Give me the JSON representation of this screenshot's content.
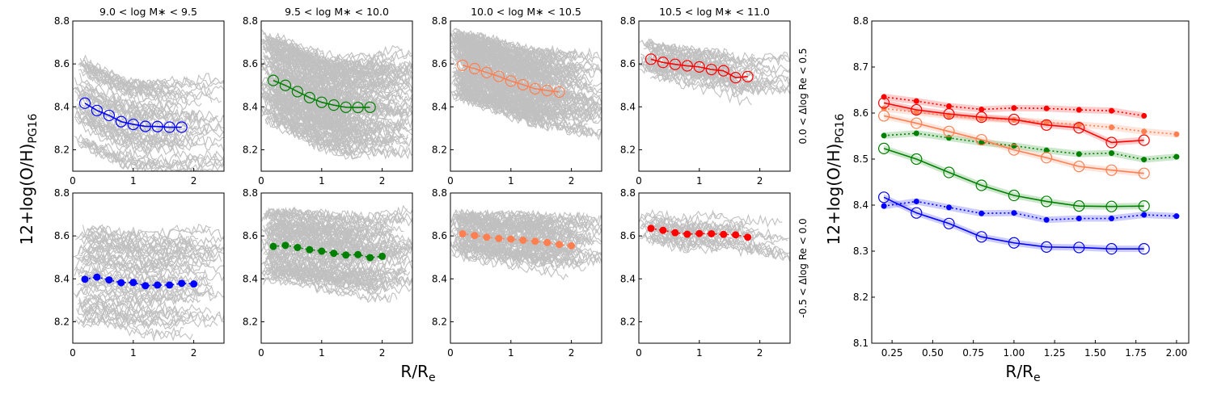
{
  "figure": {
    "ylabel": "12+log(O/H)",
    "ylabel_sub": "PG16",
    "xlabel": "R/R",
    "xlabel_sub": "e",
    "colors": {
      "bin1": "#0000ff",
      "bin2": "#008000",
      "bin3": "#ff7f50",
      "bin4": "#ff0000",
      "background": "#c0c0c0"
    }
  },
  "chart_data": [
    {
      "type": "line",
      "panel": "top-1",
      "title": "9.0 < log M∗ < 9.5",
      "row_label": "",
      "xlim": [
        0,
        2.5
      ],
      "ylim": [
        8.1,
        8.8
      ],
      "xticks": [
        "0",
        "1",
        "2"
      ],
      "yticks": [
        "8.2",
        "8.4",
        "8.6",
        "8.8"
      ],
      "marker": "open",
      "linestyle": "solid",
      "background_lines": {
        "count": 60,
        "spread": 0.2
      },
      "series": [
        {
          "name": "median",
          "color": "#0000ff",
          "x": [
            0.2,
            0.4,
            0.6,
            0.8,
            1.0,
            1.2,
            1.4,
            1.6,
            1.8
          ],
          "y": [
            8.417,
            8.383,
            8.36,
            8.331,
            8.318,
            8.309,
            8.308,
            8.305,
            8.305
          ]
        }
      ]
    },
    {
      "type": "line",
      "panel": "top-2",
      "title": "9.5 < log M∗ < 10.0",
      "row_label": "",
      "xlim": [
        0,
        2.5
      ],
      "ylim": [
        8.1,
        8.8
      ],
      "xticks": [
        "0",
        "1",
        "2"
      ],
      "yticks": [
        "8.2",
        "8.4",
        "8.6",
        "8.8"
      ],
      "marker": "open",
      "linestyle": "solid",
      "background_lines": {
        "count": 160,
        "spread": 0.2
      },
      "series": [
        {
          "name": "median",
          "color": "#008000",
          "x": [
            0.2,
            0.4,
            0.6,
            0.8,
            1.0,
            1.2,
            1.4,
            1.6,
            1.8
          ],
          "y": [
            8.523,
            8.5,
            8.471,
            8.443,
            8.421,
            8.408,
            8.398,
            8.397,
            8.398
          ]
        }
      ]
    },
    {
      "type": "line",
      "panel": "top-3",
      "title": "10.0 < log M∗ < 10.5",
      "row_label": "",
      "xlim": [
        0,
        2.5
      ],
      "ylim": [
        8.1,
        8.8
      ],
      "xticks": [
        "0",
        "1",
        "2"
      ],
      "yticks": [
        "8.2",
        "8.4",
        "8.6",
        "8.8"
      ],
      "marker": "open",
      "linestyle": "solid",
      "background_lines": {
        "count": 160,
        "spread": 0.16
      },
      "series": [
        {
          "name": "median",
          "color": "#ff7f50",
          "x": [
            0.2,
            0.4,
            0.6,
            0.8,
            1.0,
            1.2,
            1.4,
            1.6,
            1.8
          ],
          "y": [
            8.594,
            8.578,
            8.56,
            8.542,
            8.52,
            8.503,
            8.484,
            8.476,
            8.469
          ]
        }
      ]
    },
    {
      "type": "line",
      "panel": "top-4",
      "title": "10.5 < log M∗ < 11.0",
      "row_label": "0.0 < Δlog Re < 0.5",
      "xlim": [
        0,
        2.5
      ],
      "ylim": [
        8.1,
        8.8
      ],
      "xticks": [
        "0",
        "1",
        "2"
      ],
      "yticks": [
        "8.2",
        "8.4",
        "8.6",
        "8.8"
      ],
      "marker": "open",
      "linestyle": "solid",
      "background_lines": {
        "count": 40,
        "spread": 0.08
      },
      "series": [
        {
          "name": "median",
          "color": "#ff0000",
          "x": [
            0.2,
            0.4,
            0.6,
            0.8,
            1.0,
            1.2,
            1.4,
            1.6,
            1.8
          ],
          "y": [
            8.622,
            8.607,
            8.598,
            8.591,
            8.586,
            8.574,
            8.568,
            8.536,
            8.541
          ]
        }
      ]
    },
    {
      "type": "line",
      "panel": "bottom-1",
      "title": "",
      "row_label": "",
      "xlim": [
        0,
        2.5
      ],
      "ylim": [
        8.1,
        8.8
      ],
      "xticks": [
        "0",
        "1",
        "2"
      ],
      "yticks": [
        "8.2",
        "8.4",
        "8.6",
        "8.8"
      ],
      "marker": "filled",
      "linestyle": "dotted",
      "background_lines": {
        "count": 60,
        "spread": 0.24
      },
      "series": [
        {
          "name": "median",
          "color": "#0000ff",
          "x": [
            0.2,
            0.4,
            0.6,
            0.8,
            1.0,
            1.2,
            1.4,
            1.6,
            1.8,
            2.0
          ],
          "y": [
            8.398,
            8.408,
            8.395,
            8.382,
            8.383,
            8.368,
            8.371,
            8.371,
            8.379,
            8.376
          ]
        }
      ]
    },
    {
      "type": "line",
      "panel": "bottom-2",
      "title": "",
      "row_label": "",
      "xlim": [
        0,
        2.5
      ],
      "ylim": [
        8.1,
        8.8
      ],
      "xticks": [
        "0",
        "1",
        "2"
      ],
      "yticks": [
        "8.2",
        "8.4",
        "8.6",
        "8.8"
      ],
      "marker": "filled",
      "linestyle": "dotted",
      "background_lines": {
        "count": 100,
        "spread": 0.16
      },
      "series": [
        {
          "name": "median",
          "color": "#008000",
          "x": [
            0.2,
            0.4,
            0.6,
            0.8,
            1.0,
            1.2,
            1.4,
            1.6,
            1.8,
            2.0
          ],
          "y": [
            8.551,
            8.556,
            8.546,
            8.536,
            8.529,
            8.519,
            8.511,
            8.513,
            8.499,
            8.505
          ]
        }
      ]
    },
    {
      "type": "line",
      "panel": "bottom-3",
      "title": "",
      "row_label": "",
      "xlim": [
        0,
        2.5
      ],
      "ylim": [
        8.1,
        8.8
      ],
      "xticks": [
        "0",
        "1",
        "2"
      ],
      "yticks": [
        "8.2",
        "8.4",
        "8.6",
        "8.8"
      ],
      "marker": "filled",
      "linestyle": "dotted",
      "background_lines": {
        "count": 80,
        "spread": 0.1
      },
      "series": [
        {
          "name": "median",
          "color": "#ff7f50",
          "x": [
            0.2,
            0.4,
            0.6,
            0.8,
            1.0,
            1.2,
            1.4,
            1.6,
            1.8,
            2.0
          ],
          "y": [
            8.61,
            8.602,
            8.594,
            8.588,
            8.585,
            8.58,
            8.575,
            8.569,
            8.56,
            8.554
          ]
        }
      ]
    },
    {
      "type": "line",
      "panel": "bottom-4",
      "title": "",
      "row_label": "-0.5 < Δlog Re < 0.0",
      "xlim": [
        0,
        2.5
      ],
      "ylim": [
        8.1,
        8.8
      ],
      "xticks": [
        "0",
        "1",
        "2"
      ],
      "yticks": [
        "8.2",
        "8.4",
        "8.6",
        "8.8"
      ],
      "marker": "filled",
      "linestyle": "dotted",
      "background_lines": {
        "count": 25,
        "spread": 0.06
      },
      "series": [
        {
          "name": "median",
          "color": "#ff0000",
          "x": [
            0.2,
            0.4,
            0.6,
            0.8,
            1.0,
            1.2,
            1.4,
            1.6,
            1.8
          ],
          "y": [
            8.635,
            8.626,
            8.615,
            8.608,
            8.611,
            8.61,
            8.607,
            8.605,
            8.594
          ]
        }
      ]
    },
    {
      "type": "line",
      "panel": "summary",
      "title": "",
      "xlim": [
        0.125,
        2.075
      ],
      "ylim": [
        8.1,
        8.8
      ],
      "xticks": [
        "0.25",
        "0.50",
        "0.75",
        "1.00",
        "1.25",
        "1.50",
        "1.75",
        "2.00"
      ],
      "yticks": [
        "8.1",
        "8.2",
        "8.3",
        "8.4",
        "8.5",
        "8.6",
        "8.7",
        "8.8"
      ],
      "band_halfwidth": 0.007,
      "series": [
        {
          "name": "9.0-9.5 filled",
          "color": "#0000ff",
          "marker": "filled",
          "linestyle": "dotted",
          "x": [
            0.2,
            0.4,
            0.6,
            0.8,
            1.0,
            1.2,
            1.4,
            1.6,
            1.8,
            2.0
          ],
          "y": [
            8.398,
            8.408,
            8.395,
            8.382,
            8.383,
            8.368,
            8.371,
            8.371,
            8.379,
            8.376
          ]
        },
        {
          "name": "9.0-9.5 open",
          "color": "#0000ff",
          "marker": "open",
          "linestyle": "solid",
          "x": [
            0.2,
            0.4,
            0.6,
            0.8,
            1.0,
            1.2,
            1.4,
            1.6,
            1.8
          ],
          "y": [
            8.417,
            8.383,
            8.36,
            8.331,
            8.318,
            8.309,
            8.308,
            8.305,
            8.305
          ]
        },
        {
          "name": "9.5-10.0 filled",
          "color": "#008000",
          "marker": "filled",
          "linestyle": "dotted",
          "x": [
            0.2,
            0.4,
            0.6,
            0.8,
            1.0,
            1.2,
            1.4,
            1.6,
            1.8,
            2.0
          ],
          "y": [
            8.551,
            8.556,
            8.546,
            8.536,
            8.529,
            8.519,
            8.511,
            8.513,
            8.499,
            8.505
          ]
        },
        {
          "name": "9.5-10.0 open",
          "color": "#008000",
          "marker": "open",
          "linestyle": "solid",
          "x": [
            0.2,
            0.4,
            0.6,
            0.8,
            1.0,
            1.2,
            1.4,
            1.6,
            1.8
          ],
          "y": [
            8.523,
            8.5,
            8.471,
            8.443,
            8.421,
            8.408,
            8.398,
            8.397,
            8.398
          ]
        },
        {
          "name": "10.0-10.5 filled",
          "color": "#ff7f50",
          "marker": "filled",
          "linestyle": "dotted",
          "x": [
            0.2,
            0.4,
            0.6,
            0.8,
            1.0,
            1.2,
            1.4,
            1.6,
            1.8,
            2.0
          ],
          "y": [
            8.61,
            8.602,
            8.594,
            8.588,
            8.585,
            8.58,
            8.575,
            8.569,
            8.56,
            8.554
          ]
        },
        {
          "name": "10.0-10.5 open",
          "color": "#ff7f50",
          "marker": "open",
          "linestyle": "solid",
          "x": [
            0.2,
            0.4,
            0.6,
            0.8,
            1.0,
            1.2,
            1.4,
            1.6,
            1.8
          ],
          "y": [
            8.594,
            8.578,
            8.56,
            8.542,
            8.52,
            8.503,
            8.484,
            8.476,
            8.469
          ]
        },
        {
          "name": "10.5-11.0 filled",
          "color": "#ff0000",
          "marker": "filled",
          "linestyle": "dotted",
          "x": [
            0.2,
            0.4,
            0.6,
            0.8,
            1.0,
            1.2,
            1.4,
            1.6,
            1.8
          ],
          "y": [
            8.635,
            8.626,
            8.615,
            8.608,
            8.611,
            8.61,
            8.607,
            8.605,
            8.594
          ]
        },
        {
          "name": "10.5-11.0 open",
          "color": "#ff0000",
          "marker": "open",
          "linestyle": "solid",
          "x": [
            0.2,
            0.4,
            0.6,
            0.8,
            1.0,
            1.2,
            1.4,
            1.6,
            1.8
          ],
          "y": [
            8.622,
            8.607,
            8.598,
            8.591,
            8.586,
            8.574,
            8.568,
            8.536,
            8.541
          ]
        }
      ]
    }
  ]
}
